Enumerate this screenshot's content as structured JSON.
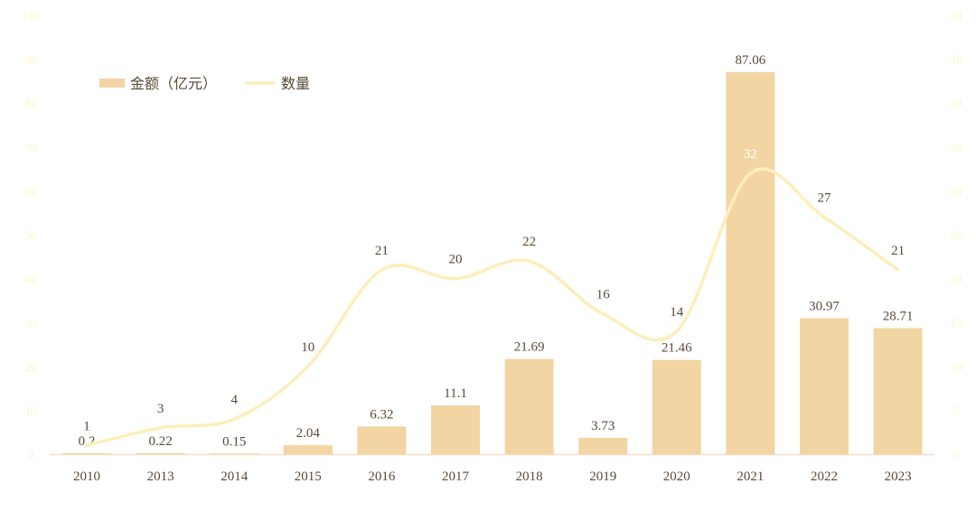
{
  "chart_data": {
    "type": "bar",
    "title": "",
    "categories": [
      "2010",
      "2013",
      "2014",
      "2015",
      "2016",
      "2017",
      "2018",
      "2019",
      "2020",
      "2021",
      "2022",
      "2023"
    ],
    "series": [
      {
        "name": "金额（亿元）",
        "type": "bar",
        "axis": "left",
        "values": [
          0.2,
          0.22,
          0.15,
          2.04,
          6.32,
          11.1,
          21.69,
          3.73,
          21.46,
          87.06,
          30.97,
          28.71
        ],
        "labels": [
          "0.2",
          "0.22",
          "0.15",
          "2.04",
          "6.32",
          "11.1",
          "21.69",
          "3.73",
          "21.46",
          "87.06",
          "30.97",
          "28.71"
        ]
      },
      {
        "name": "数量",
        "type": "line",
        "axis": "right",
        "smooth": true,
        "values": [
          1,
          3,
          4,
          10,
          21,
          20,
          22,
          16,
          14,
          32,
          27,
          21
        ],
        "labels": [
          "1",
          "3",
          "4",
          "10",
          "21",
          "20",
          "22",
          "16",
          "14",
          "32",
          "27",
          "21"
        ]
      }
    ],
    "y_left": {
      "range": [
        0,
        100
      ],
      "ticks": [
        "0",
        "10",
        "20",
        "30",
        "40",
        "50",
        "60",
        "70",
        "80",
        "90",
        "100"
      ]
    },
    "y_right": {
      "range": [
        0,
        50
      ],
      "ticks": [
        "0",
        "5",
        "10",
        "15",
        "20",
        "25",
        "30",
        "35",
        "40",
        "45",
        "50"
      ]
    },
    "grid": false,
    "legend_position": "top-left",
    "colors": {
      "bar": "#f2d5a2",
      "line": "#fdeebb",
      "axis_tick_text": "#fdf6c6",
      "label_text": "#5a4a38",
      "line_label_on_bar": "#ffffff",
      "baseline": "#f7dcc0"
    }
  }
}
